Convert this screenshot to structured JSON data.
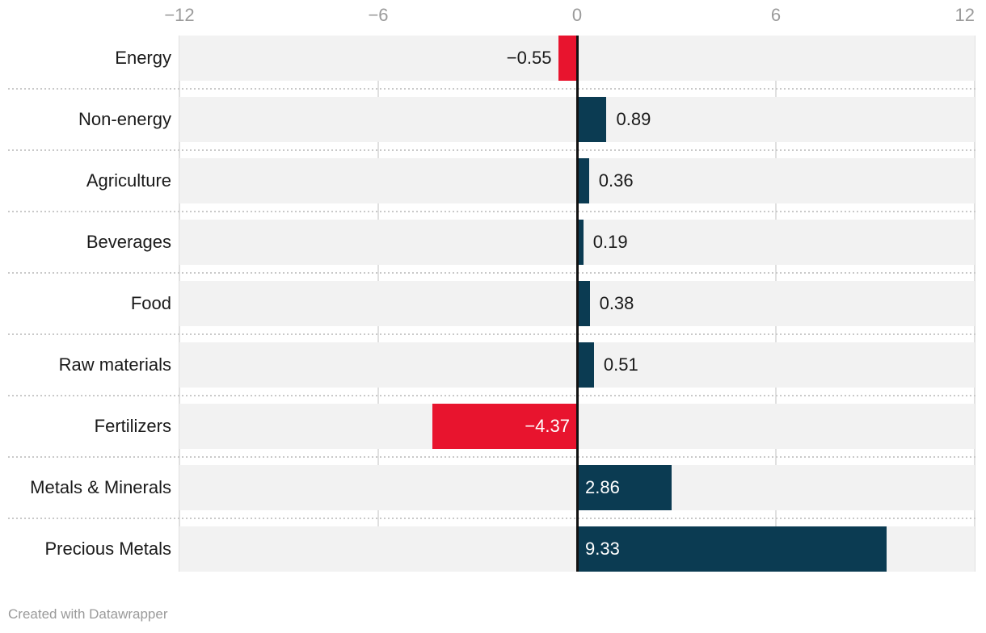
{
  "chart_data": {
    "type": "bar",
    "orientation": "horizontal",
    "title": "",
    "categories": [
      "Energy",
      "Non-energy",
      "Agriculture",
      "Beverages",
      "Food",
      "Raw materials",
      "Fertilizers",
      "Metals & Minerals",
      "Precious Metals"
    ],
    "values": [
      -0.55,
      0.89,
      0.36,
      0.19,
      0.38,
      0.51,
      -4.37,
      2.86,
      9.33
    ],
    "value_labels": [
      "−0.55",
      "0.89",
      "0.36",
      "0.19",
      "0.38",
      "0.51",
      "−4.37",
      "2.86",
      "9.33"
    ],
    "x_axis": {
      "range": [
        -12,
        12
      ],
      "ticks": [
        {
          "label": "−12",
          "value": -12
        },
        {
          "label": "−6",
          "value": -6
        },
        {
          "label": "0",
          "value": 0
        },
        {
          "label": "6",
          "value": 6
        },
        {
          "label": "12",
          "value": 12
        }
      ],
      "position": "top",
      "zero_line": true
    },
    "grid": "vertical",
    "legend": "none",
    "colors": {
      "positive": "#0b3b52",
      "negative": "#e8142e",
      "row_background": "#f2f2f2",
      "gridline": "#e0e0e0",
      "zero_line": "#121212",
      "axis_text": "#9b9b9b",
      "label_text": "#1a1a1a",
      "inside_label_text": "#ffffff"
    }
  },
  "footer": {
    "credit": "Created with Datawrapper"
  }
}
